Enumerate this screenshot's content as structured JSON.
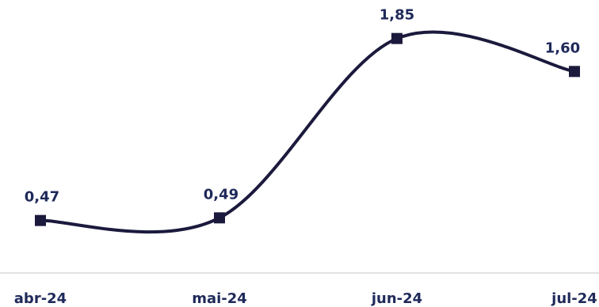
{
  "chart_data": {
    "type": "line",
    "title": "",
    "xlabel": "",
    "ylabel": "",
    "categories": [
      "abr-24",
      "mai-24",
      "jun-24",
      "jul-24"
    ],
    "series": [
      {
        "values": [
          0.47,
          0.49,
          1.85,
          1.6
        ],
        "value_labels": [
          "0,47",
          "0,49",
          "1,85",
          "1,60"
        ]
      }
    ],
    "ylim": [
      0,
      2.1
    ],
    "grid": false,
    "legend": "none",
    "smooth": true,
    "colors": {
      "line": "#1b1a3d",
      "labels": "#1f2a5a",
      "axis": "#d9d9d9"
    }
  }
}
